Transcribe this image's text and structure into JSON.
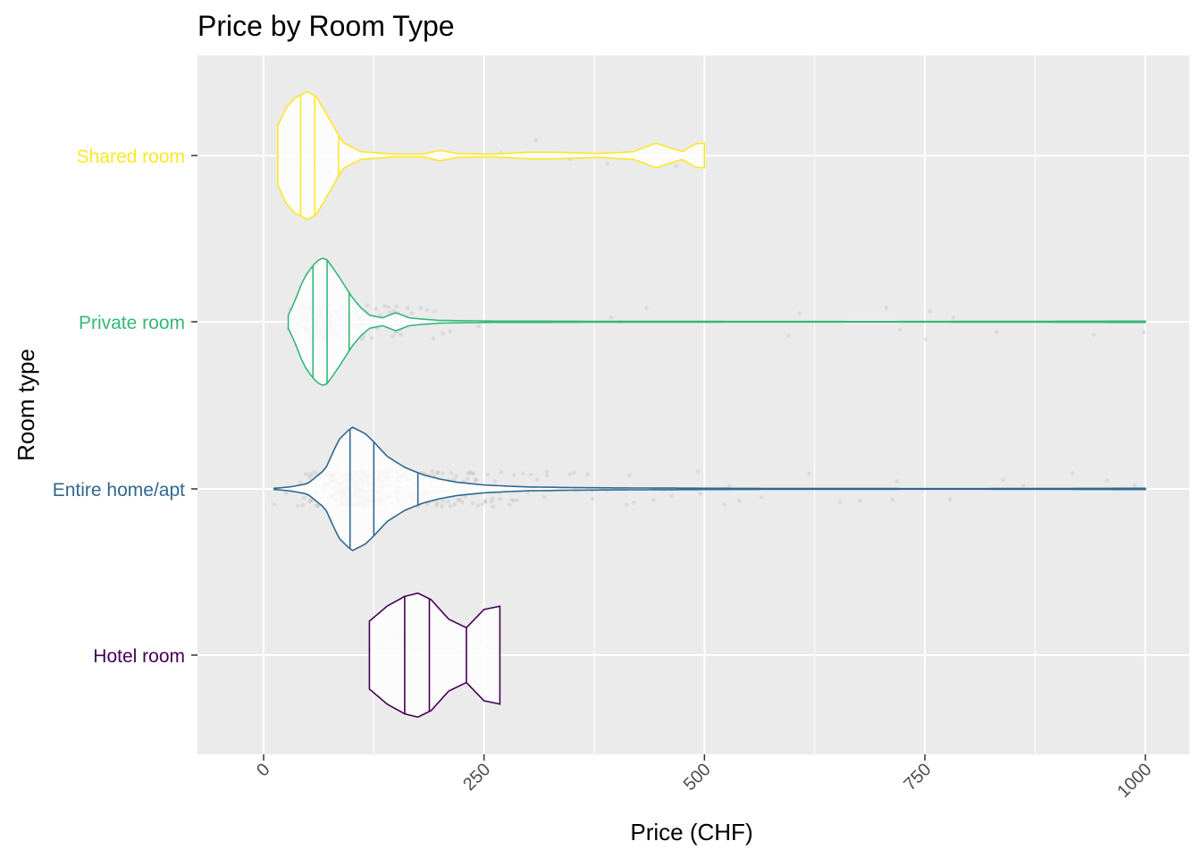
{
  "chart_data": {
    "type": "violin",
    "title": "Price by Room Type",
    "xlabel": "Price (CHF)",
    "ylabel": "Room type",
    "xlim": [
      -75,
      1050
    ],
    "x_ticks": [
      0,
      250,
      500,
      750,
      1000
    ],
    "x_tick_labels": [
      "0",
      "250",
      "500",
      "750",
      "1000"
    ],
    "grid": true,
    "legend": "none",
    "jittered_points": true,
    "categories": [
      "Hotel room",
      "Entire home/apt",
      "Private room",
      "Shared room"
    ],
    "series": [
      {
        "name": "Hotel room",
        "color": "#440154",
        "quantiles": [
          160,
          188,
          230
        ],
        "density": [
          [
            120,
            0.52
          ],
          [
            140,
            0.75
          ],
          [
            160,
            0.9
          ],
          [
            175,
            0.95
          ],
          [
            190,
            0.85
          ],
          [
            210,
            0.55
          ],
          [
            230,
            0.42
          ],
          [
            250,
            0.7
          ],
          [
            268,
            0.75
          ]
        ]
      },
      {
        "name": "Entire home/apt",
        "color": "#31688E",
        "quantiles": [
          98,
          125,
          175
        ],
        "density": [
          [
            12,
            0.01
          ],
          [
            30,
            0.03
          ],
          [
            50,
            0.08
          ],
          [
            70,
            0.3
          ],
          [
            85,
            0.75
          ],
          [
            100,
            0.95
          ],
          [
            115,
            0.85
          ],
          [
            125,
            0.72
          ],
          [
            140,
            0.5
          ],
          [
            160,
            0.33
          ],
          [
            180,
            0.22
          ],
          [
            200,
            0.15
          ],
          [
            220,
            0.1
          ],
          [
            250,
            0.06
          ],
          [
            280,
            0.04
          ],
          [
            300,
            0.03
          ],
          [
            350,
            0.02
          ],
          [
            400,
            0.015
          ],
          [
            500,
            0.01
          ],
          [
            600,
            0.006
          ],
          [
            800,
            0.004
          ],
          [
            1000,
            0.01
          ]
        ]
      },
      {
        "name": "Private room",
        "color": "#35B779",
        "quantiles": [
          56,
          72,
          97
        ],
        "density": [
          [
            28,
            0.1
          ],
          [
            35,
            0.3
          ],
          [
            45,
            0.65
          ],
          [
            55,
            0.85
          ],
          [
            65,
            0.98
          ],
          [
            72,
            0.95
          ],
          [
            85,
            0.7
          ],
          [
            100,
            0.38
          ],
          [
            110,
            0.22
          ],
          [
            120,
            0.1
          ],
          [
            135,
            0.06
          ],
          [
            150,
            0.14
          ],
          [
            165,
            0.06
          ],
          [
            180,
            0.04
          ],
          [
            200,
            0.02
          ],
          [
            260,
            0.01
          ],
          [
            300,
            0.01
          ],
          [
            400,
            0.006
          ],
          [
            500,
            0.005
          ],
          [
            700,
            0.003
          ],
          [
            1000,
            0.01
          ]
        ]
      },
      {
        "name": "Shared room",
        "color": "#FDE725",
        "quantiles": [
          42,
          58,
          85
        ],
        "density": [
          [
            16,
            0.45
          ],
          [
            25,
            0.72
          ],
          [
            35,
            0.88
          ],
          [
            50,
            0.98
          ],
          [
            60,
            0.9
          ],
          [
            75,
            0.55
          ],
          [
            90,
            0.2
          ],
          [
            110,
            0.06
          ],
          [
            150,
            0.02
          ],
          [
            180,
            0.02
          ],
          [
            200,
            0.08
          ],
          [
            220,
            0.03
          ],
          [
            260,
            0.02
          ],
          [
            300,
            0.05
          ],
          [
            330,
            0.05
          ],
          [
            380,
            0.03
          ],
          [
            420,
            0.06
          ],
          [
            445,
            0.19
          ],
          [
            460,
            0.12
          ],
          [
            475,
            0.06
          ],
          [
            490,
            0.18
          ],
          [
            500,
            0.19
          ]
        ]
      }
    ]
  }
}
